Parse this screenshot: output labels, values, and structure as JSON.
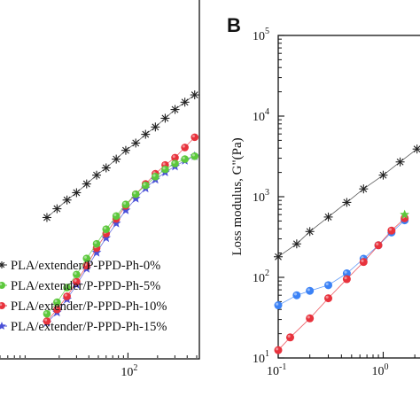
{
  "colors": {
    "series_0": "#222222",
    "series_5": "#5cc83c",
    "series_10": "#e8323c",
    "series_15": "#4a50d8",
    "series_15_alt": "#3b82f6",
    "axis": "#111111",
    "line": "#555555"
  },
  "marker_shapes": {
    "series_0": "asterisk",
    "series_5": "circle",
    "series_10": "circle",
    "series_15": "star",
    "series_15_alt": "circle"
  },
  "panel_b_label": "B",
  "chart_data": [
    {
      "type": "line",
      "panel": "A",
      "xscale": "log",
      "xlim": [
        5,
        500
      ],
      "ylim": [
        0.06,
        2.5
      ],
      "xticks": [
        {
          "value": 100,
          "label": "10",
          "exp": "2"
        }
      ],
      "legend_position": "bottom-left",
      "series": [
        {
          "name": "PLA/extender/P-PPD-Ph-0%",
          "x": [
            15,
            19,
            24,
            30,
            38,
            48,
            60,
            76,
            95,
            120,
            151,
            190,
            239,
            301,
            379,
            477
          ],
          "y": [
            1.01,
            1.07,
            1.13,
            1.18,
            1.24,
            1.3,
            1.35,
            1.41,
            1.47,
            1.52,
            1.58,
            1.63,
            1.69,
            1.75,
            1.8,
            1.85
          ]
        },
        {
          "name": "PLA/extender/P-PPD-Ph-5%",
          "x": [
            15,
            19,
            24,
            30,
            38,
            48,
            60,
            76,
            95,
            120,
            151,
            190,
            239,
            301,
            379,
            477
          ],
          "y": [
            0.35,
            0.43,
            0.53,
            0.62,
            0.73,
            0.83,
            0.93,
            1.02,
            1.1,
            1.17,
            1.23,
            1.29,
            1.34,
            1.38,
            1.41,
            1.43
          ]
        },
        {
          "name": "PLA/extender/P-PPD-Ph-10%",
          "x": [
            15,
            19,
            24,
            30,
            38,
            48,
            60,
            76,
            95,
            120,
            151,
            190,
            239,
            301,
            379,
            477
          ],
          "y": [
            0.3,
            0.38,
            0.47,
            0.57,
            0.68,
            0.8,
            0.9,
            1.0,
            1.09,
            1.17,
            1.24,
            1.31,
            1.37,
            1.42,
            1.49,
            1.56
          ]
        },
        {
          "name": "PLA/extender/P-PPD-Ph-15%",
          "x": [
            15,
            19,
            24,
            30,
            38,
            48,
            60,
            76,
            95,
            120,
            151,
            190,
            239,
            301,
            379,
            477
          ],
          "y": [
            0.29,
            0.36,
            0.45,
            0.55,
            0.66,
            0.77,
            0.87,
            0.97,
            1.06,
            1.14,
            1.21,
            1.27,
            1.32,
            1.36,
            1.4,
            1.43
          ]
        }
      ]
    },
    {
      "type": "line",
      "panel": "B",
      "xscale": "log",
      "yscale": "log",
      "xlim": [
        0.1,
        3
      ],
      "ylim": [
        10,
        100000
      ],
      "ylabel": "Loss modulus, G\"(Pa)",
      "xticks": [
        {
          "value": 0.1,
          "label": "10",
          "exp": "-1"
        },
        {
          "value": 1,
          "label": "10",
          "exp": "0"
        }
      ],
      "yticks": [
        {
          "value": 10,
          "label": "10",
          "exp": "1"
        },
        {
          "value": 100,
          "label": "10",
          "exp": "2"
        },
        {
          "value": 1000,
          "label": "10",
          "exp": "3"
        },
        {
          "value": 10000,
          "label": "10",
          "exp": "4"
        },
        {
          "value": 100000,
          "label": "10",
          "exp": "5"
        }
      ],
      "series": [
        {
          "x": [
            0.1,
            0.15,
            0.2,
            0.3,
            0.45,
            0.65,
            1.0,
            1.45,
            2.1
          ],
          "y": [
            180,
            260,
            370,
            560,
            850,
            1250,
            1850,
            2700,
            3900
          ]
        },
        {
          "x": [
            1.6
          ],
          "y": [
            600
          ]
        },
        {
          "x": [
            0.1,
            0.13,
            0.2,
            0.3,
            0.45,
            0.65,
            0.9,
            1.2,
            1.6
          ],
          "y": [
            12.5,
            18,
            31,
            55,
            95,
            155,
            250,
            380,
            540
          ]
        },
        {
          "x": [
            0.1,
            0.15,
            0.2,
            0.3,
            0.45,
            0.65,
            0.9,
            1.2,
            1.6
          ],
          "y": [
            45,
            60,
            68,
            80,
            112,
            170,
            250,
            360,
            510
          ]
        }
      ]
    }
  ]
}
